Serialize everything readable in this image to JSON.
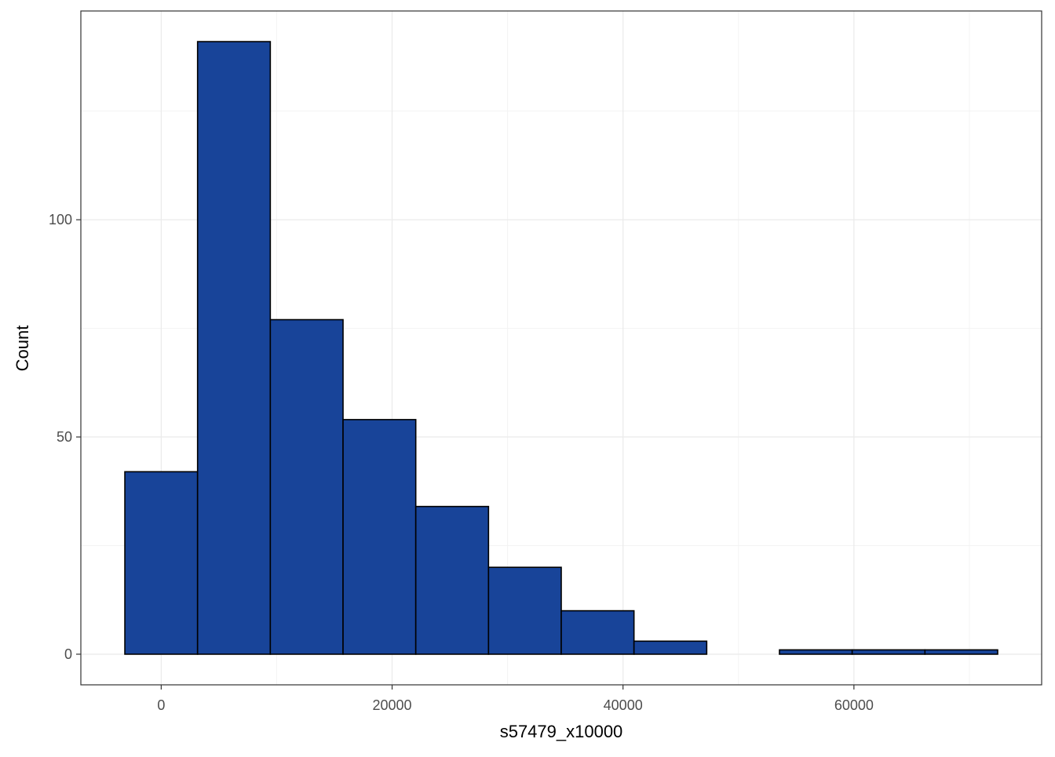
{
  "chart_data": {
    "type": "bar",
    "subtype": "histogram",
    "title": "",
    "xlabel": "s57479_x10000",
    "ylabel": "Count",
    "bins": [
      {
        "x0": -3150,
        "x1": 3150,
        "count": 42
      },
      {
        "x0": 3150,
        "x1": 9450,
        "count": 141
      },
      {
        "x0": 9450,
        "x1": 15750,
        "count": 77
      },
      {
        "x0": 15750,
        "x1": 22050,
        "count": 54
      },
      {
        "x0": 22050,
        "x1": 28350,
        "count": 34
      },
      {
        "x0": 28350,
        "x1": 34650,
        "count": 20
      },
      {
        "x0": 34650,
        "x1": 40950,
        "count": 10
      },
      {
        "x0": 40950,
        "x1": 47250,
        "count": 3
      },
      {
        "x0": 47250,
        "x1": 53550,
        "count": 0
      },
      {
        "x0": 53550,
        "x1": 59850,
        "count": 1
      },
      {
        "x0": 59850,
        "x1": 66150,
        "count": 1
      },
      {
        "x0": 66150,
        "x1": 72450,
        "count": 1
      }
    ],
    "xlim": [
      -6960,
      76260
    ],
    "ylim": [
      -7.05,
      148.05
    ],
    "xticks": [
      0,
      20000,
      40000,
      60000
    ],
    "xtick_labels": [
      "0",
      "20000",
      "40000",
      "60000"
    ],
    "yticks": [
      0,
      50,
      100
    ],
    "ytick_labels": [
      "0",
      "50",
      "100"
    ],
    "grid": true,
    "legend": "none",
    "colors": {
      "bar_fill": "#184499",
      "bar_stroke": "#000000",
      "grid_major": "#ebebeb",
      "grid_minor": "#f3f3f3",
      "panel_border": "#333333"
    }
  }
}
